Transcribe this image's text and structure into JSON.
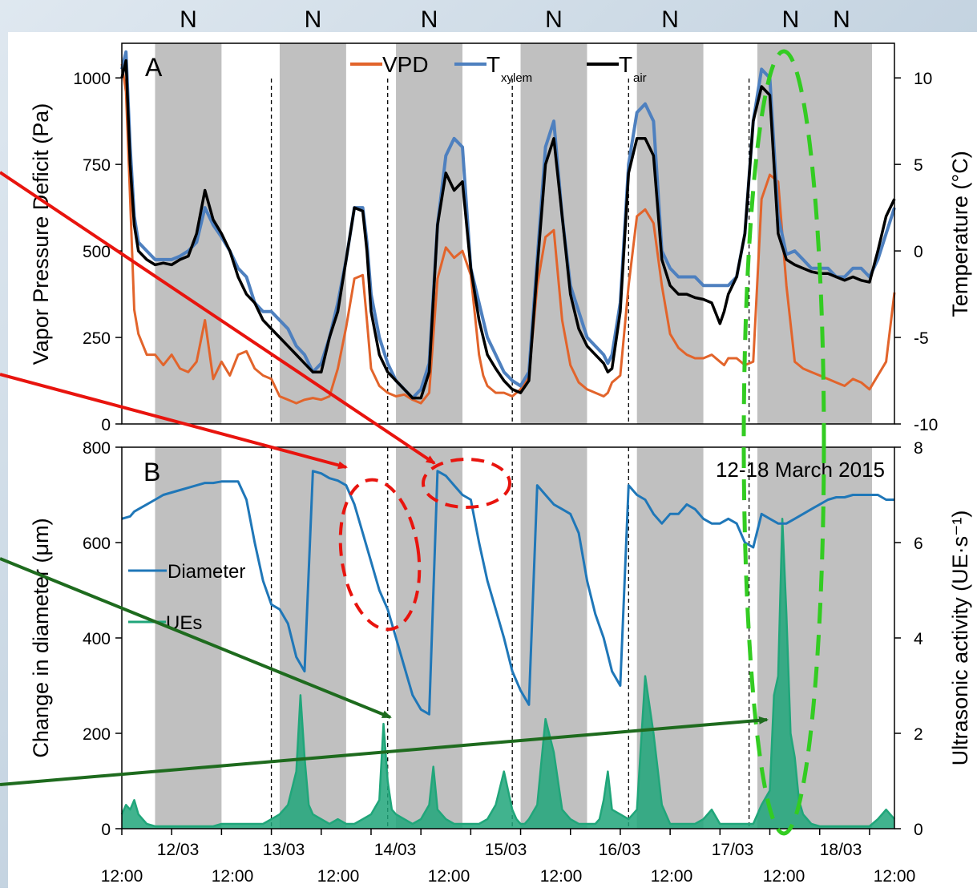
{
  "night_marker": "N",
  "colors": {
    "vpd": "#e2642b",
    "txylem": "#4e80bf",
    "tair": "#000000",
    "diameter": "#1f77b8",
    "ues": "#20a67a",
    "night_band": "#c0c0c0",
    "red_annotation": "#e8140e",
    "green_annotation": "#1e6b1e",
    "green_ellipse": "#33cc22"
  },
  "chart_data": [
    {
      "type": "line",
      "panel_label": "A",
      "ylabel_left": "Vapor Pressure Deficit (Pa)",
      "ylabel_right": "Temperature (°C)",
      "ylim_left": [
        0,
        1100
      ],
      "ylim_right": [
        -10,
        12
      ],
      "yticks_left": [
        "0",
        "250",
        "500",
        "750",
        "1000"
      ],
      "yticks_right": [
        "-10",
        "-5",
        "0",
        "5",
        "10"
      ],
      "legend": [
        {
          "name": "VPD",
          "sub": ""
        },
        {
          "name": "T",
          "sub": "xylem"
        },
        {
          "name": "T",
          "sub": "air"
        }
      ],
      "legend_position": "top-center",
      "night_bands_hours": [
        [
          8,
          24
        ],
        [
          38,
          54
        ],
        [
          66,
          82
        ],
        [
          96,
          112
        ],
        [
          124,
          140
        ],
        [
          153,
          169
        ]
      ],
      "day_dividers_hours": [
        36,
        64,
        94,
        122,
        151
      ],
      "series": [
        {
          "name": "VPD",
          "axis": "left",
          "x_hours": [
            0,
            1,
            2,
            3,
            4,
            6,
            8,
            10,
            12,
            14,
            16,
            18,
            20,
            22,
            24,
            26,
            28,
            30,
            32,
            34,
            36,
            38,
            40,
            42,
            44,
            46,
            48,
            50,
            52,
            54,
            56,
            58,
            59,
            60,
            62,
            64,
            66,
            68,
            70,
            72,
            74,
            76,
            78,
            80,
            82,
            84,
            86,
            87,
            88,
            90,
            92,
            94,
            96,
            98,
            100,
            102,
            104,
            106,
            108,
            110,
            112,
            114,
            116,
            117,
            118,
            120,
            122,
            124,
            126,
            128,
            130,
            132,
            134,
            136,
            138,
            140,
            142,
            144,
            145,
            146,
            148,
            150,
            152,
            154,
            156,
            158,
            160,
            162,
            164,
            166,
            168,
            170,
            172,
            174,
            176,
            178,
            180,
            182,
            184,
            186
          ],
          "y": [
            1040,
            960,
            650,
            330,
            260,
            200,
            200,
            170,
            200,
            160,
            150,
            180,
            300,
            130,
            180,
            140,
            200,
            210,
            160,
            140,
            130,
            80,
            70,
            60,
            70,
            75,
            70,
            80,
            160,
            280,
            420,
            430,
            300,
            160,
            110,
            90,
            80,
            85,
            70,
            60,
            90,
            420,
            510,
            480,
            500,
            430,
            200,
            140,
            110,
            90,
            90,
            80,
            100,
            140,
            400,
            540,
            560,
            300,
            170,
            120,
            100,
            90,
            80,
            90,
            120,
            140,
            400,
            600,
            620,
            580,
            400,
            260,
            220,
            200,
            190,
            190,
            200,
            180,
            170,
            190,
            190,
            170,
            180,
            650,
            720,
            700,
            400,
            180,
            160,
            150,
            140,
            130,
            120,
            110,
            130,
            120,
            100,
            140,
            180,
            380
          ]
        },
        {
          "name": "T",
          "axis": "right",
          "x_hours": [
            0,
            1,
            2,
            3,
            4,
            6,
            8,
            10,
            12,
            14,
            16,
            18,
            20,
            22,
            24,
            26,
            28,
            30,
            32,
            34,
            36,
            38,
            40,
            42,
            44,
            46,
            48,
            50,
            52,
            54,
            56,
            58,
            59,
            60,
            62,
            64,
            66,
            68,
            70,
            72,
            74,
            76,
            78,
            80,
            82,
            84,
            86,
            87,
            88,
            90,
            92,
            94,
            96,
            98,
            100,
            102,
            104,
            106,
            108,
            110,
            112,
            114,
            116,
            117,
            118,
            120,
            122,
            124,
            126,
            128,
            130,
            132,
            134,
            136,
            138,
            140,
            142,
            144,
            145,
            146,
            148,
            150,
            152,
            154,
            156,
            158,
            160,
            162,
            164,
            166,
            168,
            170,
            172,
            174,
            176,
            178,
            180,
            182,
            184,
            186
          ],
          "y": [
            10.5,
            11.5,
            6,
            2,
            0.5,
            0,
            -0.5,
            -0.5,
            -0.5,
            -0.3,
            0,
            0.5,
            2.5,
            1.5,
            0.8,
            0,
            -1,
            -1.5,
            -3,
            -3.5,
            -3.5,
            -4,
            -4.5,
            -5.5,
            -6,
            -7,
            -6.5,
            -5,
            -3,
            -0.5,
            2.5,
            2.5,
            0.5,
            -2.5,
            -5,
            -6.5,
            -7.5,
            -8,
            -8.5,
            -8,
            -6.5,
            1.5,
            5.5,
            6.5,
            6,
            -1,
            -3,
            -4,
            -5,
            -6,
            -7,
            -7.5,
            -7.8,
            -7,
            -0.5,
            6,
            7.5,
            2,
            -2,
            -3.5,
            -5,
            -5.5,
            -6,
            -6.5,
            -6,
            -3,
            5,
            8,
            8.5,
            7.5,
            0,
            -1,
            -1.5,
            -1.5,
            -1.5,
            -2,
            -2,
            -2,
            -2,
            -2,
            -1.5,
            1,
            7.5,
            10.5,
            10,
            2,
            -0.2,
            0,
            -0.5,
            -1,
            -1,
            -1,
            -1.5,
            -1.5,
            -1,
            -1,
            -1.5,
            -0.5,
            1,
            2.5
          ]
        },
        {
          "name": "T",
          "axis": "right",
          "x_hours": [
            0,
            1,
            2,
            3,
            4,
            6,
            8,
            10,
            12,
            14,
            16,
            18,
            20,
            22,
            24,
            26,
            28,
            30,
            32,
            34,
            36,
            38,
            40,
            42,
            44,
            46,
            48,
            50,
            52,
            54,
            56,
            58,
            59,
            60,
            62,
            64,
            66,
            68,
            70,
            72,
            74,
            76,
            78,
            80,
            82,
            84,
            86,
            87,
            88,
            90,
            92,
            94,
            96,
            98,
            100,
            102,
            104,
            106,
            108,
            110,
            112,
            114,
            116,
            117,
            118,
            120,
            122,
            124,
            126,
            128,
            130,
            132,
            134,
            136,
            138,
            140,
            142,
            144,
            145,
            146,
            148,
            150,
            152,
            154,
            156,
            158,
            160,
            162,
            164,
            166,
            168,
            170,
            172,
            174,
            176,
            178,
            180,
            182,
            184,
            186
          ],
          "y": [
            10,
            11,
            5,
            1.5,
            0,
            -0.5,
            -0.8,
            -0.7,
            -0.8,
            -0.5,
            -0.3,
            1,
            3.5,
            1.8,
            1,
            0,
            -1.5,
            -2.5,
            -3,
            -4,
            -4.5,
            -5,
            -5.5,
            -6,
            -6.5,
            -7,
            -7,
            -5,
            -3.5,
            -0.5,
            2.5,
            2.3,
            0,
            -3.5,
            -6,
            -7,
            -7.5,
            -8,
            -8.5,
            -8.5,
            -7,
            1.5,
            4.5,
            3.5,
            4,
            -1,
            -4,
            -5,
            -6,
            -6.8,
            -7.5,
            -8,
            -8.2,
            -7.5,
            -1,
            5,
            6.5,
            2,
            -2.5,
            -4.5,
            -5.5,
            -6,
            -6.5,
            -7,
            -6.8,
            -3.5,
            4.5,
            6.5,
            6.5,
            5.5,
            -0.5,
            -2,
            -2.5,
            -2.5,
            -2.7,
            -2.8,
            -3,
            -4.2,
            -3.5,
            -2.5,
            -1.5,
            1,
            7.5,
            9.5,
            9,
            1,
            -0.5,
            -0.8,
            -1,
            -1.2,
            -1.3,
            -1.3,
            -1.5,
            -1.7,
            -1.5,
            -1.7,
            -1.8,
            0,
            2,
            3
          ]
        }
      ]
    },
    {
      "type": "line",
      "panel_label": "B",
      "annotation": "12-18 March 2015",
      "ylabel_left": "Change in diameter (μm)",
      "ylabel_right": "Ultrasonic activity (UE·s⁻¹)",
      "ylim_left": [
        0,
        800
      ],
      "ylim_right": [
        0,
        8
      ],
      "yticks_left": [
        "0",
        "200",
        "400",
        "600",
        "800"
      ],
      "yticks_right": [
        "0",
        "2",
        "4",
        "6",
        "8"
      ],
      "x_axis_top_labels": [
        "12/03",
        "13/03",
        "14/03",
        "15/03",
        "16/03",
        "17/03",
        "18/03"
      ],
      "x_axis_bottom_labels": [
        "12:00",
        "12:00",
        "12:00",
        "12:00",
        "12:00",
        "12:00",
        "12:00",
        "12:00"
      ],
      "series": [
        {
          "name": "Diameter",
          "axis": "left",
          "x_hours": [
            0,
            2,
            3,
            4,
            6,
            8,
            10,
            12,
            14,
            16,
            18,
            20,
            22,
            24,
            26,
            28,
            30,
            32,
            34,
            36,
            38,
            40,
            42,
            44,
            46,
            48,
            50,
            52,
            54,
            56,
            58,
            60,
            62,
            64,
            66,
            68,
            70,
            72,
            74,
            76,
            78,
            80,
            82,
            84,
            86,
            88,
            90,
            92,
            94,
            96,
            98,
            100,
            102,
            104,
            106,
            108,
            110,
            112,
            114,
            116,
            118,
            120,
            122,
            124,
            126,
            128,
            130,
            132,
            134,
            136,
            138,
            140,
            142,
            144,
            146,
            148,
            150,
            152,
            154,
            156,
            158,
            160,
            162,
            164,
            166,
            168,
            170,
            172,
            174,
            176,
            178,
            180,
            182,
            184,
            186
          ],
          "y": [
            650,
            655,
            665,
            670,
            680,
            690,
            700,
            705,
            710,
            715,
            720,
            725,
            725,
            728,
            728,
            728,
            690,
            600,
            520,
            470,
            460,
            430,
            360,
            330,
            750,
            745,
            735,
            730,
            720,
            680,
            620,
            560,
            500,
            460,
            400,
            340,
            280,
            250,
            240,
            750,
            740,
            720,
            700,
            690,
            600,
            520,
            460,
            400,
            330,
            290,
            260,
            720,
            700,
            680,
            670,
            660,
            620,
            520,
            450,
            400,
            330,
            300,
            720,
            700,
            690,
            660,
            640,
            660,
            660,
            680,
            670,
            650,
            640,
            640,
            650,
            640,
            600,
            590,
            660,
            650,
            640,
            640,
            650,
            660,
            670,
            680,
            690,
            695,
            695,
            700,
            700,
            700,
            700,
            690,
            690
          ]
        },
        {
          "name": "UEs",
          "axis": "right",
          "x_hours": [
            0,
            1,
            2,
            3,
            4,
            5,
            6,
            8,
            10,
            12,
            14,
            16,
            18,
            20,
            22,
            24,
            26,
            28,
            30,
            32,
            34,
            36,
            38,
            40,
            42,
            43,
            44,
            45,
            46,
            48,
            50,
            52,
            54,
            56,
            58,
            60,
            62,
            63,
            64,
            65,
            66,
            68,
            70,
            72,
            74,
            75,
            76,
            78,
            80,
            82,
            84,
            86,
            88,
            90,
            92,
            94,
            95,
            96,
            97,
            98,
            100,
            102,
            104,
            106,
            108,
            110,
            112,
            114,
            115,
            116,
            117,
            118,
            120,
            122,
            124,
            126,
            128,
            130,
            132,
            134,
            135,
            136,
            137,
            138,
            140,
            142,
            144,
            146,
            148,
            150,
            152,
            154,
            156,
            157,
            158,
            159,
            160,
            161,
            162,
            163,
            164,
            166,
            168,
            170,
            172,
            174,
            176,
            178,
            180,
            182,
            184,
            186
          ],
          "y": [
            0.3,
            0.5,
            0.4,
            0.6,
            0.3,
            0.2,
            0.1,
            0.05,
            0.05,
            0.05,
            0.05,
            0.05,
            0.05,
            0.05,
            0.05,
            0.1,
            0.1,
            0.1,
            0.1,
            0.1,
            0.1,
            0.2,
            0.3,
            0.5,
            1.2,
            2.8,
            1.5,
            0.5,
            0.3,
            0.2,
            0.1,
            0.2,
            0.1,
            0.1,
            0.2,
            0.3,
            0.6,
            2.2,
            1.0,
            0.4,
            0.3,
            0.2,
            0.1,
            0.2,
            0.5,
            1.3,
            0.4,
            0.2,
            0.1,
            0.1,
            0.1,
            0.1,
            0.2,
            0.5,
            1.2,
            0.4,
            0.2,
            0.1,
            0.1,
            0.2,
            0.5,
            2.3,
            1.6,
            0.4,
            0.2,
            0.1,
            0.1,
            0.1,
            0.2,
            0.6,
            1.2,
            0.4,
            0.3,
            0.2,
            0.4,
            3.2,
            2.0,
            0.5,
            0.1,
            0.1,
            0.1,
            0.1,
            0.1,
            0.1,
            0.2,
            0.4,
            0.1,
            0.1,
            0.1,
            0.1,
            0.1,
            0.5,
            0.8,
            2.8,
            3.2,
            6.5,
            4.5,
            2.0,
            1.5,
            0.6,
            0.3,
            0.1,
            0.05,
            0.05,
            0.05,
            0.05,
            0.05,
            0.05,
            0.05,
            0.2,
            0.4,
            0.2
          ]
        }
      ]
    }
  ]
}
